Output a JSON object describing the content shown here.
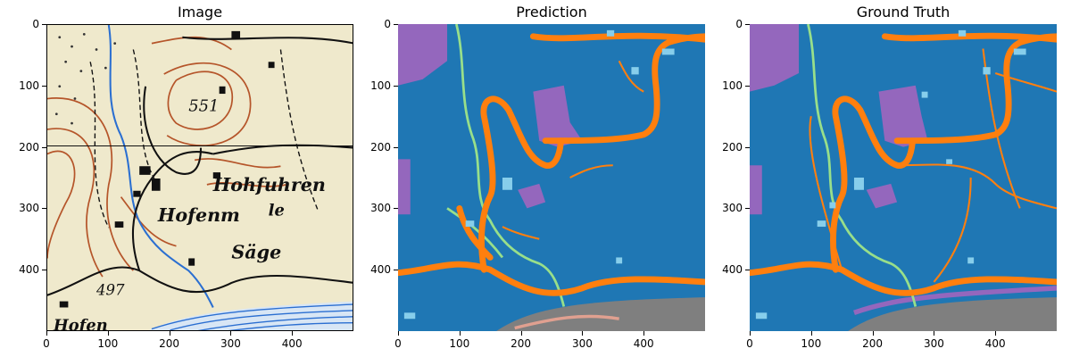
{
  "panels": [
    {
      "title": "Image"
    },
    {
      "title": "Prediction"
    },
    {
      "title": "Ground Truth"
    }
  ],
  "axes": {
    "x_ticks": [
      "0",
      "100",
      "200",
      "300",
      "400"
    ],
    "y_ticks": [
      "0",
      "100",
      "200",
      "300",
      "400"
    ]
  },
  "map_labels": {
    "elev1": "551",
    "place1": "Hohfuhren",
    "place2": "Hofenm",
    "place2b": "le",
    "place3": "Säge",
    "elev2": "497",
    "place4": "Hofen"
  },
  "colors": {
    "background_class": "#1f77b4",
    "road": "#ff7f0e",
    "forest_region": "#9467bd",
    "path": "#98df8a",
    "building": "#87ceeb",
    "water": "#7f7f7f",
    "map_paper": "#efe9cc",
    "contour": "#b5552a",
    "river_line": "#2b6fd1"
  }
}
